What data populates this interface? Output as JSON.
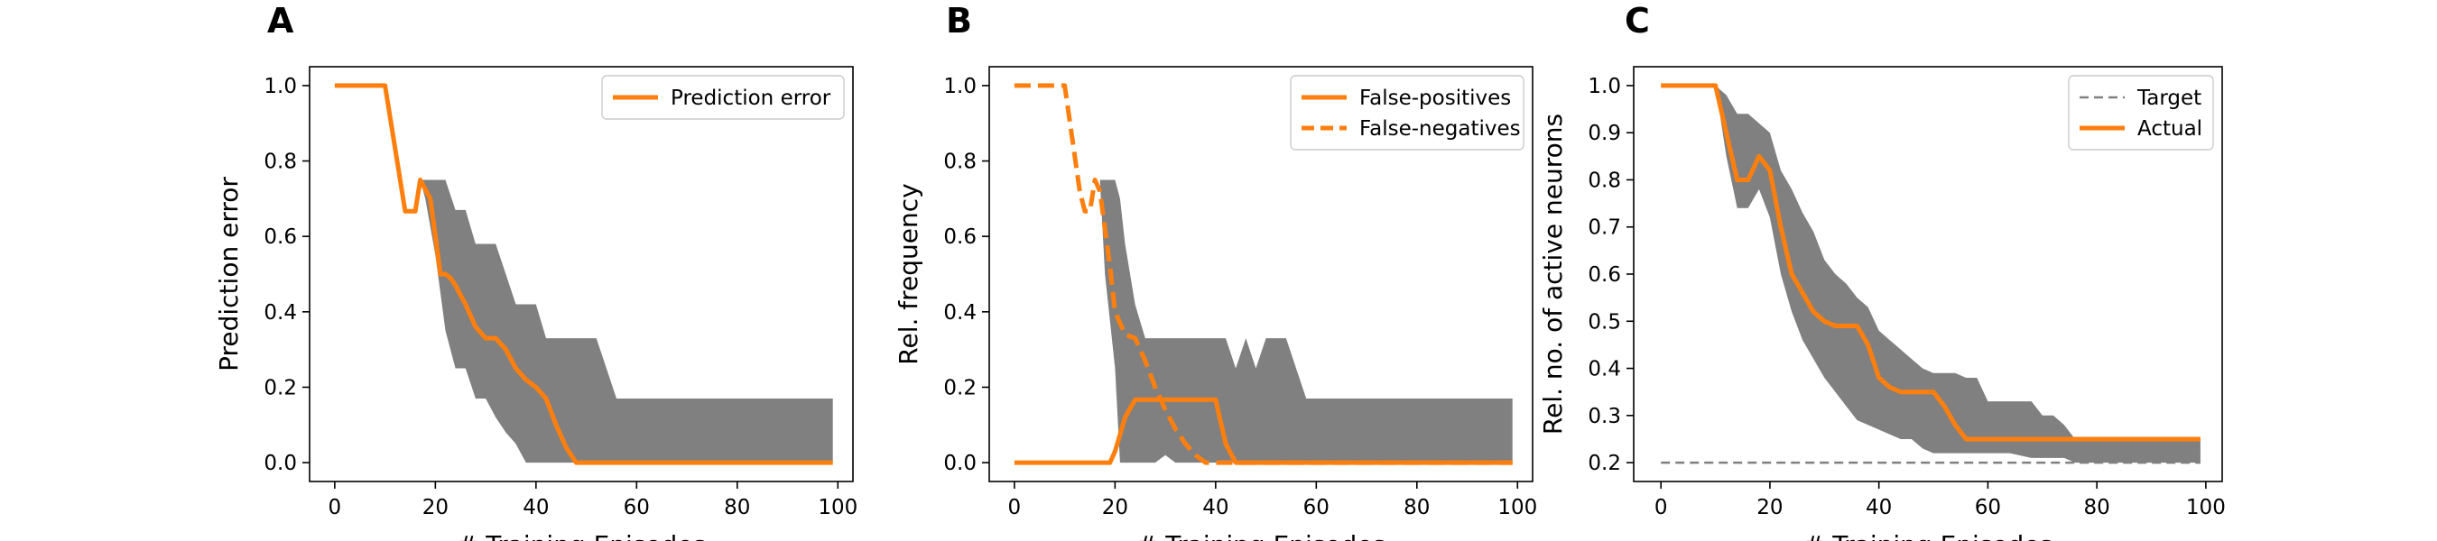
{
  "chart_data": [
    {
      "panel": "A",
      "type": "line",
      "xlabel": "# Training Episodes",
      "ylabel": "Prediction error",
      "xlim": [
        -5,
        103
      ],
      "ylim": [
        -0.05,
        1.05
      ],
      "xticks": [
        0,
        20,
        40,
        60,
        80,
        100
      ],
      "yticks": [
        0.0,
        0.2,
        0.4,
        0.6,
        0.8,
        1.0
      ],
      "ytick_format": 1,
      "legend_position": "top-right",
      "series": [
        {
          "name": "Prediction error",
          "color": "#ff7f0e",
          "style": "solid",
          "x": [
            0,
            10,
            14,
            16,
            17,
            19,
            20,
            21,
            22,
            23,
            24,
            26,
            28,
            30,
            32,
            34,
            36,
            38,
            40,
            42,
            44,
            46,
            48,
            50,
            99
          ],
          "y": [
            1.0,
            1.0,
            0.667,
            0.667,
            0.75,
            0.7,
            0.6,
            0.5,
            0.5,
            0.49,
            0.47,
            0.42,
            0.36,
            0.33,
            0.33,
            0.3,
            0.25,
            0.22,
            0.2,
            0.17,
            0.1,
            0.04,
            0.0,
            0.0,
            0.0
          ]
        }
      ],
      "bands": [
        {
          "name": "",
          "color": "#808080",
          "x": [
            17,
            18,
            20,
            22,
            24,
            26,
            28,
            30,
            32,
            34,
            36,
            38,
            40,
            42,
            44,
            46,
            48,
            50,
            52,
            54,
            56,
            58,
            60,
            99
          ],
          "upper": [
            0.75,
            0.75,
            0.75,
            0.75,
            0.67,
            0.67,
            0.58,
            0.58,
            0.58,
            0.5,
            0.42,
            0.42,
            0.42,
            0.33,
            0.33,
            0.33,
            0.33,
            0.33,
            0.33,
            0.25,
            0.17,
            0.17,
            0.17,
            0.17
          ],
          "lower": [
            0.75,
            0.7,
            0.55,
            0.35,
            0.25,
            0.25,
            0.17,
            0.17,
            0.12,
            0.08,
            0.05,
            0.0,
            0.0,
            0.0,
            0.0,
            0.0,
            0.0,
            0.0,
            0.0,
            0.0,
            0.0,
            0.0,
            0.0,
            0.0
          ]
        }
      ]
    },
    {
      "panel": "B",
      "type": "line",
      "xlabel": "# Training Episodes",
      "ylabel": "Rel. frequency",
      "xlim": [
        -5,
        103
      ],
      "ylim": [
        -0.05,
        1.05
      ],
      "xticks": [
        0,
        20,
        40,
        60,
        80,
        100
      ],
      "yticks": [
        0.0,
        0.2,
        0.4,
        0.6,
        0.8,
        1.0
      ],
      "ytick_format": 1,
      "legend_position": "top-right",
      "series": [
        {
          "name": "False-positives",
          "color": "#ff7f0e",
          "style": "solid",
          "x": [
            0,
            19,
            20,
            22,
            24,
            38,
            40,
            42,
            44,
            99
          ],
          "y": [
            0.0,
            0.0,
            0.03,
            0.12,
            0.167,
            0.167,
            0.167,
            0.05,
            0.0,
            0.0
          ]
        },
        {
          "name": "False-negatives",
          "color": "#ff7f0e",
          "style": "dashed",
          "x": [
            0,
            10,
            13,
            14,
            15,
            16,
            17,
            18,
            19,
            20,
            22,
            24,
            26,
            28,
            30,
            32,
            34,
            36,
            38,
            40,
            99
          ],
          "y": [
            1.0,
            1.0,
            0.72,
            0.667,
            0.667,
            0.75,
            0.72,
            0.62,
            0.52,
            0.4,
            0.34,
            0.33,
            0.27,
            0.2,
            0.14,
            0.09,
            0.05,
            0.02,
            0.0,
            0.0,
            0.0
          ]
        }
      ],
      "bands": [
        {
          "name": "",
          "color": "#808080",
          "x": [
            17,
            18,
            20,
            21,
            22,
            24,
            26,
            28,
            30,
            32,
            34,
            36,
            38,
            40,
            42,
            44,
            46,
            48,
            50,
            52,
            54,
            56,
            58,
            60,
            99
          ],
          "upper": [
            0.75,
            0.75,
            0.75,
            0.7,
            0.58,
            0.42,
            0.33,
            0.33,
            0.33,
            0.33,
            0.33,
            0.33,
            0.33,
            0.33,
            0.33,
            0.25,
            0.33,
            0.25,
            0.33,
            0.33,
            0.33,
            0.25,
            0.17,
            0.17,
            0.17
          ],
          "lower": [
            0.75,
            0.5,
            0.25,
            0.0,
            0.0,
            0.0,
            0.0,
            0.0,
            0.02,
            0.0,
            0.0,
            0.0,
            0.0,
            0.0,
            0.0,
            0.0,
            0.0,
            0.0,
            0.0,
            0.0,
            0.0,
            0.0,
            0.0,
            0.0,
            0.0
          ]
        }
      ]
    },
    {
      "panel": "C",
      "type": "line",
      "xlabel": "# Training Episodes",
      "ylabel": "Rel. no. of active neurons",
      "xlim": [
        -5,
        103
      ],
      "ylim": [
        0.16,
        1.04
      ],
      "xticks": [
        0,
        20,
        40,
        60,
        80,
        100
      ],
      "yticks": [
        0.2,
        0.3,
        0.4,
        0.5,
        0.6,
        0.7,
        0.8,
        0.9,
        1.0
      ],
      "ytick_format": 1,
      "legend_position": "top-right",
      "series": [
        {
          "name": "Target",
          "color": "#808080",
          "style": "dashed",
          "x": [
            0,
            99
          ],
          "y": [
            0.2,
            0.2
          ]
        },
        {
          "name": "Actual",
          "color": "#ff7f0e",
          "style": "solid",
          "x": [
            0,
            10,
            12,
            14,
            16,
            18,
            20,
            22,
            24,
            26,
            28,
            30,
            32,
            34,
            36,
            38,
            40,
            42,
            44,
            46,
            48,
            50,
            52,
            54,
            56,
            58,
            60,
            99
          ],
          "y": [
            1.0,
            1.0,
            0.9,
            0.8,
            0.8,
            0.85,
            0.82,
            0.7,
            0.6,
            0.56,
            0.52,
            0.5,
            0.49,
            0.49,
            0.49,
            0.45,
            0.38,
            0.36,
            0.35,
            0.35,
            0.35,
            0.35,
            0.32,
            0.28,
            0.25,
            0.25,
            0.25,
            0.25
          ]
        }
      ],
      "bands": [
        {
          "name": "",
          "color": "#808080",
          "x": [
            0,
            10,
            12,
            14,
            16,
            18,
            20,
            22,
            24,
            26,
            28,
            30,
            32,
            34,
            36,
            38,
            40,
            42,
            44,
            46,
            48,
            50,
            52,
            54,
            56,
            58,
            60,
            64,
            68,
            70,
            72,
            74,
            76,
            78,
            80,
            99
          ],
          "upper": [
            1.0,
            1.0,
            0.98,
            0.94,
            0.94,
            0.92,
            0.9,
            0.82,
            0.78,
            0.73,
            0.69,
            0.63,
            0.6,
            0.58,
            0.55,
            0.53,
            0.48,
            0.46,
            0.44,
            0.42,
            0.4,
            0.39,
            0.39,
            0.39,
            0.38,
            0.38,
            0.33,
            0.33,
            0.33,
            0.3,
            0.3,
            0.28,
            0.25,
            0.25,
            0.25,
            0.25
          ],
          "lower": [
            1.0,
            1.0,
            0.85,
            0.74,
            0.74,
            0.78,
            0.72,
            0.6,
            0.52,
            0.46,
            0.42,
            0.38,
            0.35,
            0.32,
            0.29,
            0.28,
            0.27,
            0.26,
            0.25,
            0.25,
            0.23,
            0.22,
            0.22,
            0.22,
            0.22,
            0.22,
            0.22,
            0.22,
            0.21,
            0.21,
            0.21,
            0.21,
            0.2,
            0.2,
            0.2,
            0.2
          ]
        }
      ]
    }
  ]
}
